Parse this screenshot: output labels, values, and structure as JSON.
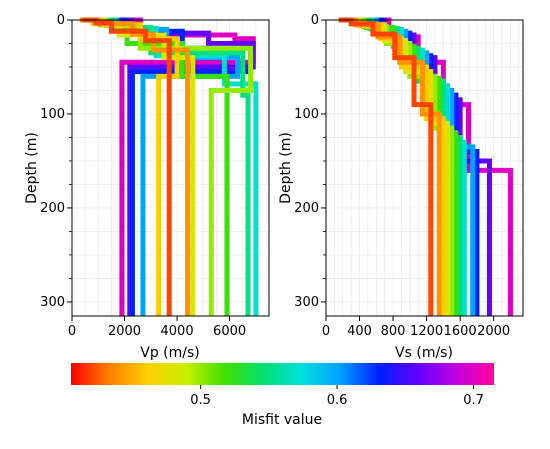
{
  "chart_data": [
    {
      "type": "line",
      "title": "",
      "xlabel": "Vp (m/s)",
      "ylabel": "Depth (m)",
      "xlim": [
        0,
        7500
      ],
      "ylim": [
        315,
        0
      ],
      "x_ticks": [
        "0",
        "2000",
        "4000",
        "6000"
      ],
      "y_ticks": [
        "0",
        "100",
        "200",
        "300"
      ],
      "grid": true,
      "description_of_series": "ensemble of stepwise velocity profiles colored by misfit",
      "series": [
        {
          "misfit": 0.42,
          "x": [
            400,
            900,
            1500,
            2800,
            3700,
            3700
          ],
          "depth": [
            0,
            3,
            12,
            22,
            110,
            315
          ]
        },
        {
          "misfit": 0.44,
          "x": [
            300,
            1000,
            2300,
            3100,
            4400,
            4400
          ],
          "depth": [
            0,
            4,
            15,
            32,
            120,
            315
          ]
        },
        {
          "misfit": 0.46,
          "x": [
            500,
            1200,
            2600,
            4000,
            3300,
            3300
          ],
          "depth": [
            0,
            5,
            20,
            60,
            110,
            315
          ]
        },
        {
          "misfit": 0.48,
          "x": [
            400,
            800,
            1800,
            3500,
            4600,
            4600
          ],
          "depth": [
            0,
            4,
            16,
            40,
            120,
            315
          ]
        },
        {
          "misfit": 0.5,
          "x": [
            300,
            1300,
            2600,
            6800,
            5300,
            5300
          ],
          "depth": [
            0,
            6,
            30,
            75,
            110,
            315
          ]
        },
        {
          "misfit": 0.52,
          "x": [
            300,
            1100,
            2100,
            4200,
            5900,
            5900
          ],
          "depth": [
            0,
            5,
            25,
            60,
            125,
            315
          ]
        },
        {
          "misfit": 0.55,
          "x": [
            400,
            1600,
            3000,
            6500,
            6700,
            6700
          ],
          "depth": [
            0,
            8,
            35,
            80,
            105,
            315
          ]
        },
        {
          "misfit": 0.57,
          "x": [
            400,
            1500,
            3200,
            5800,
            7000,
            7000
          ],
          "depth": [
            0,
            9,
            38,
            68,
            110,
            315
          ]
        },
        {
          "misfit": 0.6,
          "x": [
            500,
            1700,
            3600,
            6300,
            2700,
            2700
          ],
          "depth": [
            0,
            10,
            40,
            60,
            135,
            315
          ]
        },
        {
          "misfit": 0.63,
          "x": [
            500,
            2000,
            4200,
            6800,
            2300,
            2300
          ],
          "depth": [
            0,
            12,
            30,
            55,
            150,
            315
          ]
        },
        {
          "misfit": 0.66,
          "x": [
            600,
            2300,
            5200,
            6900,
            2200,
            2200
          ],
          "depth": [
            0,
            14,
            25,
            50,
            150,
            315
          ]
        },
        {
          "misfit": 0.7,
          "x": [
            700,
            2600,
            6200,
            6900,
            1900,
            1900
          ],
          "depth": [
            0,
            16,
            20,
            45,
            160,
            315
          ]
        }
      ]
    },
    {
      "type": "line",
      "title": "",
      "xlabel": "Vs (m/s)",
      "ylabel": "Depth (m)",
      "xlim": [
        0,
        2350
      ],
      "ylim": [
        315,
        0
      ],
      "x_ticks": [
        "0",
        "400",
        "800",
        "1200",
        "1600",
        "2000"
      ],
      "y_ticks": [
        "0",
        "100",
        "200",
        "300"
      ],
      "grid": true,
      "series": [
        {
          "misfit": 0.42,
          "x": [
            150,
            300,
            560,
            820,
            1050,
            1250,
            1250
          ],
          "depth": [
            0,
            4,
            15,
            40,
            90,
            140,
            315
          ]
        },
        {
          "misfit": 0.44,
          "x": [
            200,
            350,
            620,
            880,
            1150,
            1350,
            1350
          ],
          "depth": [
            0,
            5,
            18,
            45,
            100,
            150,
            315
          ]
        },
        {
          "misfit": 0.46,
          "x": [
            150,
            400,
            650,
            900,
            1200,
            1400,
            1400
          ],
          "depth": [
            0,
            6,
            20,
            50,
            105,
            155,
            315
          ]
        },
        {
          "misfit": 0.48,
          "x": [
            180,
            380,
            700,
            950,
            1250,
            1450,
            1450
          ],
          "depth": [
            0,
            5,
            22,
            55,
            110,
            160,
            315
          ]
        },
        {
          "misfit": 0.5,
          "x": [
            200,
            450,
            720,
            1000,
            1300,
            1500,
            1500
          ],
          "depth": [
            0,
            7,
            25,
            60,
            115,
            165,
            315
          ]
        },
        {
          "misfit": 0.52,
          "x": [
            230,
            480,
            800,
            1050,
            1350,
            1550,
            1550
          ],
          "depth": [
            0,
            8,
            28,
            62,
            120,
            170,
            315
          ]
        },
        {
          "misfit": 0.55,
          "x": [
            250,
            520,
            850,
            1100,
            1400,
            1600,
            1600
          ],
          "depth": [
            0,
            9,
            30,
            65,
            125,
            180,
            315
          ]
        },
        {
          "misfit": 0.57,
          "x": [
            260,
            550,
            900,
            1150,
            1450,
            1650,
            1650
          ],
          "depth": [
            0,
            10,
            32,
            70,
            130,
            190,
            315
          ]
        },
        {
          "misfit": 0.6,
          "x": [
            280,
            600,
            950,
            1200,
            1500,
            1750,
            1750
          ],
          "depth": [
            0,
            12,
            35,
            75,
            135,
            200,
            315
          ]
        },
        {
          "misfit": 0.63,
          "x": [
            300,
            650,
            1000,
            1250,
            1550,
            1800,
            1800
          ],
          "depth": [
            0,
            14,
            38,
            80,
            140,
            210,
            315
          ]
        },
        {
          "misfit": 0.66,
          "x": [
            330,
            700,
            1050,
            1300,
            1600,
            1950,
            1950
          ],
          "depth": [
            0,
            16,
            40,
            85,
            150,
            230,
            315
          ]
        },
        {
          "misfit": 0.7,
          "x": [
            350,
            750,
            1100,
            1400,
            1700,
            2200,
            2200
          ],
          "depth": [
            0,
            18,
            45,
            90,
            160,
            260,
            315
          ]
        }
      ]
    }
  ],
  "colorbar": {
    "label": "Misfit value",
    "range": [
      0.405,
      0.715
    ],
    "ticks": [
      "0.5",
      "0.6",
      "0.7"
    ],
    "tick_values": [
      0.5,
      0.6,
      0.7
    ],
    "colors": [
      "#ff0000",
      "#ff8000",
      "#ffd000",
      "#c8f000",
      "#40e000",
      "#00e070",
      "#00e0e0",
      "#00a0ff",
      "#0020ff",
      "#6000ff",
      "#c000e0",
      "#ff00a0"
    ]
  }
}
